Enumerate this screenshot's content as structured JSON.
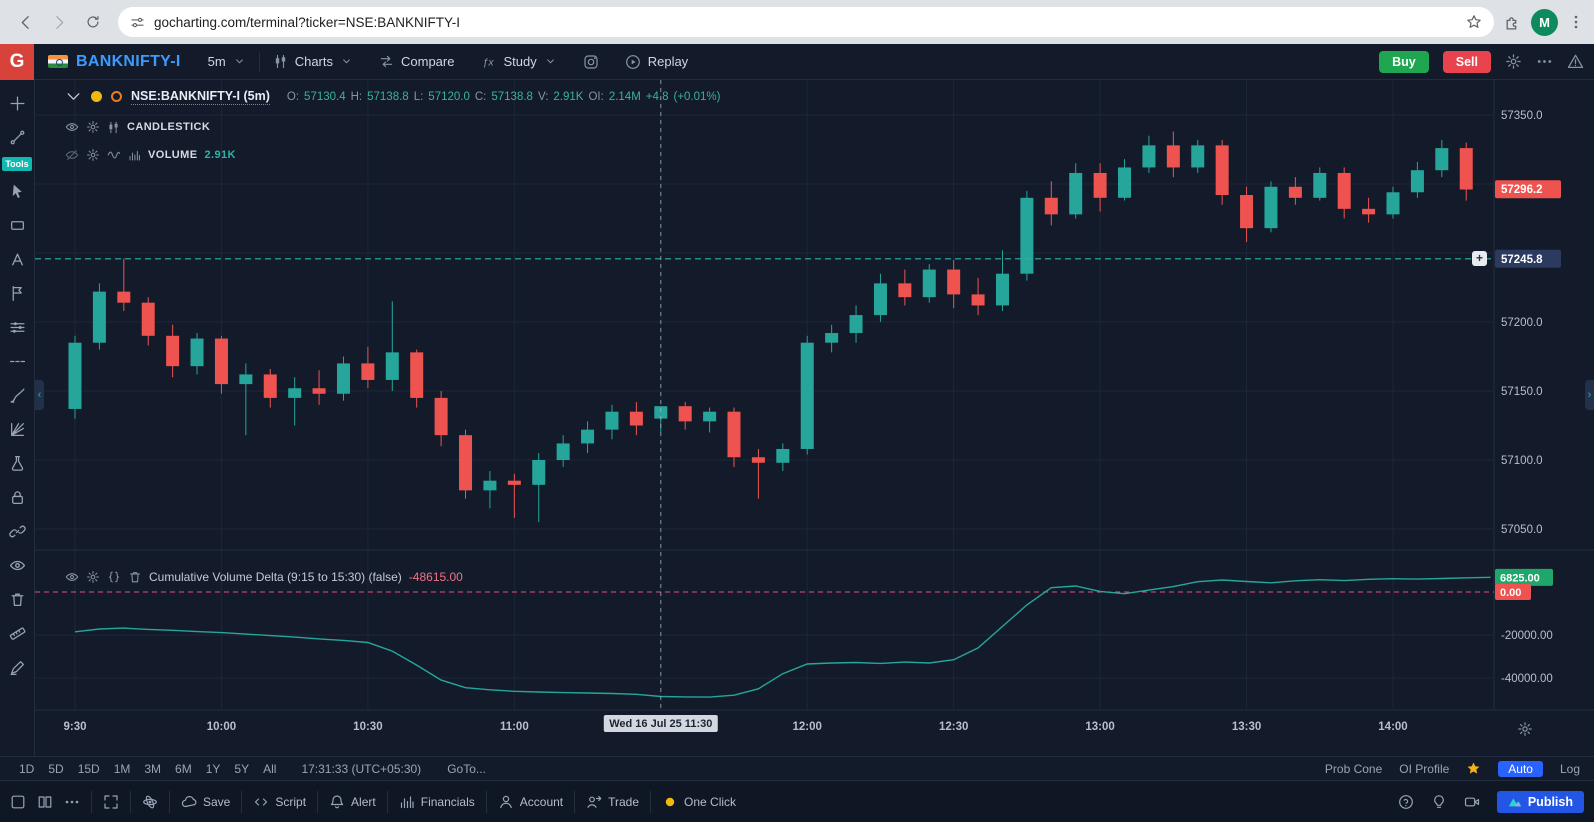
{
  "browser": {
    "url": "gocharting.com/terminal?ticker=NSE:BANKNIFTY-I",
    "profile_initial": "M"
  },
  "topbar": {
    "logo": "G",
    "ticker": "BANKNIFTY-I",
    "timeframe": "5m",
    "charts": "Charts",
    "compare": "Compare",
    "study": "Study",
    "replay": "Replay",
    "buy": "Buy",
    "sell": "Sell"
  },
  "sidebar": {
    "badge": "Tools",
    "tools": [
      "crosshair",
      "trendline",
      "cursor",
      "shape",
      "text",
      "flag",
      "sliders",
      "dashline",
      "brush",
      "gann",
      "flask",
      "lock",
      "link",
      "eye",
      "trash",
      "ruler",
      "marker"
    ]
  },
  "legend": {
    "symbol": "NSE:BANKNIFTY-I (5m)",
    "o_label": "O:",
    "o": "57130.4",
    "h_label": "H:",
    "h": "57138.8",
    "l_label": "L:",
    "l": "57120.0",
    "c_label": "C:",
    "c": "57138.8",
    "v_label": "V:",
    "v": "2.91K",
    "oi_label": "OI:",
    "oi": "2.14M",
    "change": "+4.8",
    "change_pct": "(+0.01%)",
    "candlestick": "CANDLESTICK",
    "volume": "VOLUME",
    "volume_value": "2.91K",
    "cvd_title": "Cumulative Volume Delta (9:15 to 15:30) (false)",
    "cvd_value": "-48615.00"
  },
  "rangebar": {
    "ranges": [
      "1D",
      "5D",
      "15D",
      "1M",
      "3M",
      "6M",
      "1Y",
      "5Y",
      "All"
    ],
    "clock": "17:31:33 (UTC+05:30)",
    "goto": "GoTo...",
    "prob_cone": "Prob Cone",
    "oi_profile": "OI Profile",
    "auto": "Auto",
    "log": "Log"
  },
  "bottombar": {
    "items": [
      {
        "name": "layout",
        "label": ""
      },
      {
        "name": "panels",
        "label": ""
      },
      {
        "name": "more",
        "label": ""
      },
      {
        "name": "fullscreen",
        "label": ""
      },
      {
        "name": "themes",
        "label": ""
      },
      {
        "name": "save",
        "label": "Save"
      },
      {
        "name": "script",
        "label": "Script"
      },
      {
        "name": "alert",
        "label": "Alert"
      },
      {
        "name": "financials",
        "label": "Financials"
      },
      {
        "name": "account",
        "label": "Account"
      },
      {
        "name": "trade",
        "label": "Trade"
      },
      {
        "name": "oneclick",
        "label": "One Click"
      }
    ],
    "right_items": [
      {
        "name": "help"
      },
      {
        "name": "ideas"
      },
      {
        "name": "video"
      }
    ],
    "publish": "Publish"
  },
  "chart_data": {
    "type": "candlestick",
    "symbol": "NSE:BANKNIFTY-I",
    "interval": "5m",
    "session_start": "9:30",
    "step_minutes": 5,
    "candles": [
      [
        57137,
        57190,
        57130,
        57185
      ],
      [
        57185,
        57228,
        57180,
        57222
      ],
      [
        57222,
        57246,
        57208,
        57214
      ],
      [
        57214,
        57218,
        57183,
        57190
      ],
      [
        57190,
        57198,
        57160,
        57168
      ],
      [
        57168,
        57192,
        57162,
        57188
      ],
      [
        57188,
        57190,
        57148,
        57155
      ],
      [
        57155,
        57170,
        57118,
        57162
      ],
      [
        57162,
        57166,
        57138,
        57145
      ],
      [
        57145,
        57160,
        57125,
        57152
      ],
      [
        57152,
        57165,
        57140,
        57148
      ],
      [
        57148,
        57175,
        57143,
        57170
      ],
      [
        57170,
        57182,
        57152,
        57158
      ],
      [
        57158,
        57215,
        57150,
        57178
      ],
      [
        57178,
        57180,
        57138,
        57145
      ],
      [
        57145,
        57150,
        57110,
        57118
      ],
      [
        57118,
        57122,
        57072,
        57078
      ],
      [
        57078,
        57092,
        57065,
        57085
      ],
      [
        57085,
        57090,
        57058,
        57082
      ],
      [
        57082,
        57105,
        57055,
        57100
      ],
      [
        57100,
        57118,
        57095,
        57112
      ],
      [
        57112,
        57128,
        57105,
        57122
      ],
      [
        57122,
        57140,
        57115,
        57135
      ],
      [
        57135,
        57142,
        57118,
        57125
      ],
      [
        57130,
        57139,
        57120,
        57139
      ],
      [
        57139,
        57142,
        57122,
        57128
      ],
      [
        57128,
        57138,
        57120,
        57135
      ],
      [
        57135,
        57138,
        57095,
        57102
      ],
      [
        57102,
        57108,
        57072,
        57098
      ],
      [
        57098,
        57112,
        57092,
        57108
      ],
      [
        57108,
        57190,
        57104,
        57185
      ],
      [
        57185,
        57198,
        57178,
        57192
      ],
      [
        57192,
        57212,
        57185,
        57205
      ],
      [
        57205,
        57235,
        57200,
        57228
      ],
      [
        57228,
        57238,
        57212,
        57218
      ],
      [
        57218,
        57242,
        57214,
        57238
      ],
      [
        57238,
        57245,
        57210,
        57220
      ],
      [
        57220,
        57232,
        57205,
        57212
      ],
      [
        57212,
        57252,
        57208,
        57235
      ],
      [
        57235,
        57295,
        57230,
        57290
      ],
      [
        57290,
        57302,
        57270,
        57278
      ],
      [
        57278,
        57315,
        57275,
        57308
      ],
      [
        57308,
        57315,
        57280,
        57290
      ],
      [
        57290,
        57318,
        57288,
        57312
      ],
      [
        57312,
        57335,
        57308,
        57328
      ],
      [
        57328,
        57338,
        57305,
        57312
      ],
      [
        57312,
        57332,
        57308,
        57328
      ],
      [
        57328,
        57332,
        57285,
        57292
      ],
      [
        57292,
        57298,
        57258,
        57268
      ],
      [
        57268,
        57302,
        57265,
        57298
      ],
      [
        57298,
        57305,
        57285,
        57290
      ],
      [
        57290,
        57312,
        57288,
        57308
      ],
      [
        57308,
        57312,
        57275,
        57282
      ],
      [
        57282,
        57290,
        57272,
        57278
      ],
      [
        57278,
        57298,
        57275,
        57294
      ],
      [
        57294,
        57316,
        57290,
        57310
      ],
      [
        57310,
        57332,
        57305,
        57326
      ],
      [
        57326,
        57330,
        57288,
        57296
      ]
    ],
    "price_ticks": [
      {
        "value": 57350,
        "label": "57350.0"
      },
      {
        "value": 57300,
        "label": ""
      },
      {
        "value": 57250,
        "label": ""
      },
      {
        "value": 57200,
        "label": "57200.0"
      },
      {
        "value": 57150,
        "label": "57150.0"
      },
      {
        "value": 57100,
        "label": "57100.0"
      },
      {
        "value": 57050,
        "label": "57050.0"
      }
    ],
    "last_price": {
      "value": 57296.2,
      "label": "57296.2",
      "direction": "down"
    },
    "horizontal_line": {
      "value": 57245.8,
      "label": "57245.8"
    },
    "time_ticks": [
      {
        "t": 0,
        "label": "9:30"
      },
      {
        "t": 30,
        "label": "10:00"
      },
      {
        "t": 60,
        "label": "10:30"
      },
      {
        "t": 90,
        "label": "11:00"
      },
      {
        "t": 150,
        "label": "12:00"
      },
      {
        "t": 180,
        "label": "12:30"
      },
      {
        "t": 210,
        "label": "13:00"
      },
      {
        "t": 240,
        "label": "13:30"
      },
      {
        "t": 270,
        "label": "14:00"
      }
    ],
    "crosshair": {
      "t": 120,
      "label": "Wed 16 Jul 25 11:30"
    },
    "cvd": {
      "name": "Cumulative Volume Delta",
      "points": [
        [
          0,
          -18500
        ],
        [
          5,
          -17200
        ],
        [
          10,
          -16800
        ],
        [
          15,
          -17400
        ],
        [
          20,
          -17800
        ],
        [
          25,
          -18400
        ],
        [
          30,
          -18900
        ],
        [
          35,
          -19600
        ],
        [
          40,
          -20300
        ],
        [
          45,
          -21000
        ],
        [
          50,
          -21800
        ],
        [
          55,
          -22500
        ],
        [
          60,
          -23500
        ],
        [
          65,
          -27500
        ],
        [
          70,
          -34000
        ],
        [
          75,
          -41000
        ],
        [
          80,
          -44500
        ],
        [
          85,
          -45500
        ],
        [
          90,
          -46200
        ],
        [
          95,
          -46500
        ],
        [
          100,
          -46800
        ],
        [
          105,
          -47000
        ],
        [
          110,
          -47200
        ],
        [
          115,
          -47600
        ],
        [
          120,
          -48615
        ],
        [
          125,
          -48800
        ],
        [
          130,
          -48900
        ],
        [
          135,
          -48000
        ],
        [
          140,
          -45000
        ],
        [
          145,
          -38000
        ],
        [
          150,
          -33500
        ],
        [
          155,
          -33000
        ],
        [
          160,
          -32800
        ],
        [
          165,
          -33200
        ],
        [
          170,
          -32600
        ],
        [
          175,
          -33000
        ],
        [
          180,
          -31500
        ],
        [
          185,
          -26000
        ],
        [
          190,
          -16000
        ],
        [
          195,
          -6000
        ],
        [
          200,
          2000
        ],
        [
          205,
          2800
        ],
        [
          210,
          300
        ],
        [
          215,
          -800
        ],
        [
          220,
          900
        ],
        [
          225,
          2500
        ],
        [
          230,
          4800
        ],
        [
          235,
          5600
        ],
        [
          240,
          4900
        ],
        [
          245,
          4300
        ],
        [
          250,
          5200
        ],
        [
          255,
          5700
        ],
        [
          260,
          5300
        ],
        [
          265,
          5900
        ],
        [
          270,
          6200
        ],
        [
          275,
          6000
        ],
        [
          280,
          6300
        ],
        [
          285,
          6600
        ],
        [
          290,
          6825
        ]
      ],
      "ticks": [
        {
          "value": -20000,
          "label": "-20000.00"
        },
        {
          "value": -40000,
          "label": "-40000.00"
        }
      ],
      "last": {
        "value": 6825,
        "label": "6825.00"
      },
      "zero": {
        "value": 0,
        "label": "0.00"
      }
    },
    "colors": {
      "up": "#26a69a",
      "down": "#ef5350",
      "cvd_line": "#26a69a",
      "zero_line": "#e0527c"
    }
  }
}
